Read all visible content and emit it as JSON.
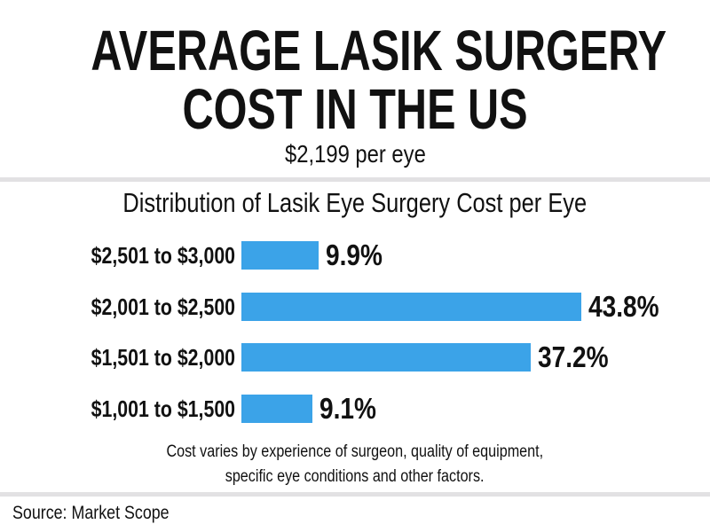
{
  "header": {
    "title_line1": "AVERAGE LASIK SURGERY",
    "title_line2": "COST IN THE US",
    "subtitle": "$2,199 per eye"
  },
  "chart_data": {
    "type": "bar",
    "orientation": "horizontal",
    "title": "Distribution of Lasik Eye Surgery Cost per Eye",
    "categories": [
      "$2,501 to $3,000",
      "$2,001 to $2,500",
      "$1,501 to $2,000",
      "$1,001 to $1,500"
    ],
    "values": [
      9.9,
      43.8,
      37.2,
      9.1
    ],
    "value_labels": [
      "9.9%",
      "43.8%",
      "37.2%",
      "9.1%"
    ],
    "unit": "%",
    "bar_color": "#3ba3e8",
    "grid": false
  },
  "footer": {
    "note_line1": "Cost varies by experience of surgeon, quality of equipment,",
    "note_line2": "specific eye conditions and other factors.",
    "source": "Source: Market Scope"
  }
}
